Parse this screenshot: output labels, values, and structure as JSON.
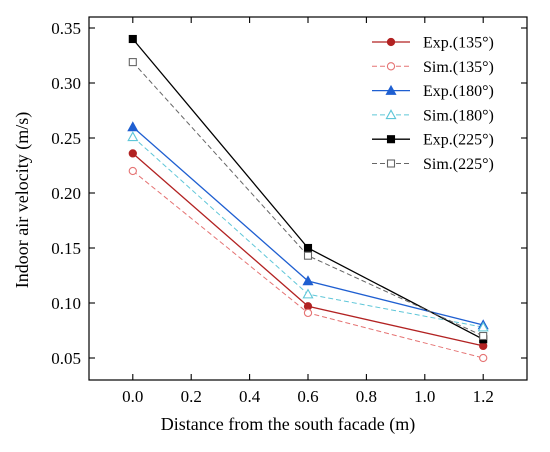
{
  "chart_data": {
    "type": "line",
    "xlabel": "Distance from the south facade (m)",
    "ylabel": "Indoor air velocity (m/s)",
    "xlim": [
      -0.15,
      1.35
    ],
    "ylim": [
      0.03,
      0.36
    ],
    "x_ticks": [
      0.0,
      0.2,
      0.4,
      0.6,
      0.8,
      1.0,
      1.2
    ],
    "x_tick_labels": [
      "0.0",
      "0.2",
      "0.4",
      "0.6",
      "0.8",
      "1.0",
      "1.2"
    ],
    "y_ticks": [
      0.05,
      0.1,
      0.15,
      0.2,
      0.25,
      0.3,
      0.35
    ],
    "y_tick_labels": [
      "0.05",
      "0.10",
      "0.15",
      "0.20",
      "0.25",
      "0.30",
      "0.35"
    ],
    "x": [
      0.0,
      0.6,
      1.2
    ],
    "grid": false,
    "legend_position": "top-right",
    "series": [
      {
        "name": "Exp.(135°)",
        "values": [
          0.236,
          0.097,
          0.061
        ],
        "color": "#b22222",
        "line_style": "solid",
        "marker": "circle",
        "marker_filled": true
      },
      {
        "name": "Sim.(135°)",
        "values": [
          0.22,
          0.091,
          0.05
        ],
        "color": "#e57373",
        "line_style": "dashed",
        "marker": "circle",
        "marker_filled": false
      },
      {
        "name": "Exp.(180°)",
        "values": [
          0.26,
          0.12,
          0.08
        ],
        "color": "#1f5fd1",
        "line_style": "solid",
        "marker": "triangle",
        "marker_filled": true
      },
      {
        "name": "Sim.(180°)",
        "values": [
          0.251,
          0.108,
          0.078
        ],
        "color": "#5ec6d8",
        "line_style": "dashed",
        "marker": "triangle",
        "marker_filled": false
      },
      {
        "name": "Exp.(225°)",
        "values": [
          0.34,
          0.15,
          0.067
        ],
        "color": "#000000",
        "line_style": "solid",
        "marker": "square",
        "marker_filled": true
      },
      {
        "name": "Sim.(225°)",
        "values": [
          0.319,
          0.143,
          0.07
        ],
        "color": "#666666",
        "line_style": "dashed",
        "marker": "square",
        "marker_filled": false
      }
    ]
  }
}
